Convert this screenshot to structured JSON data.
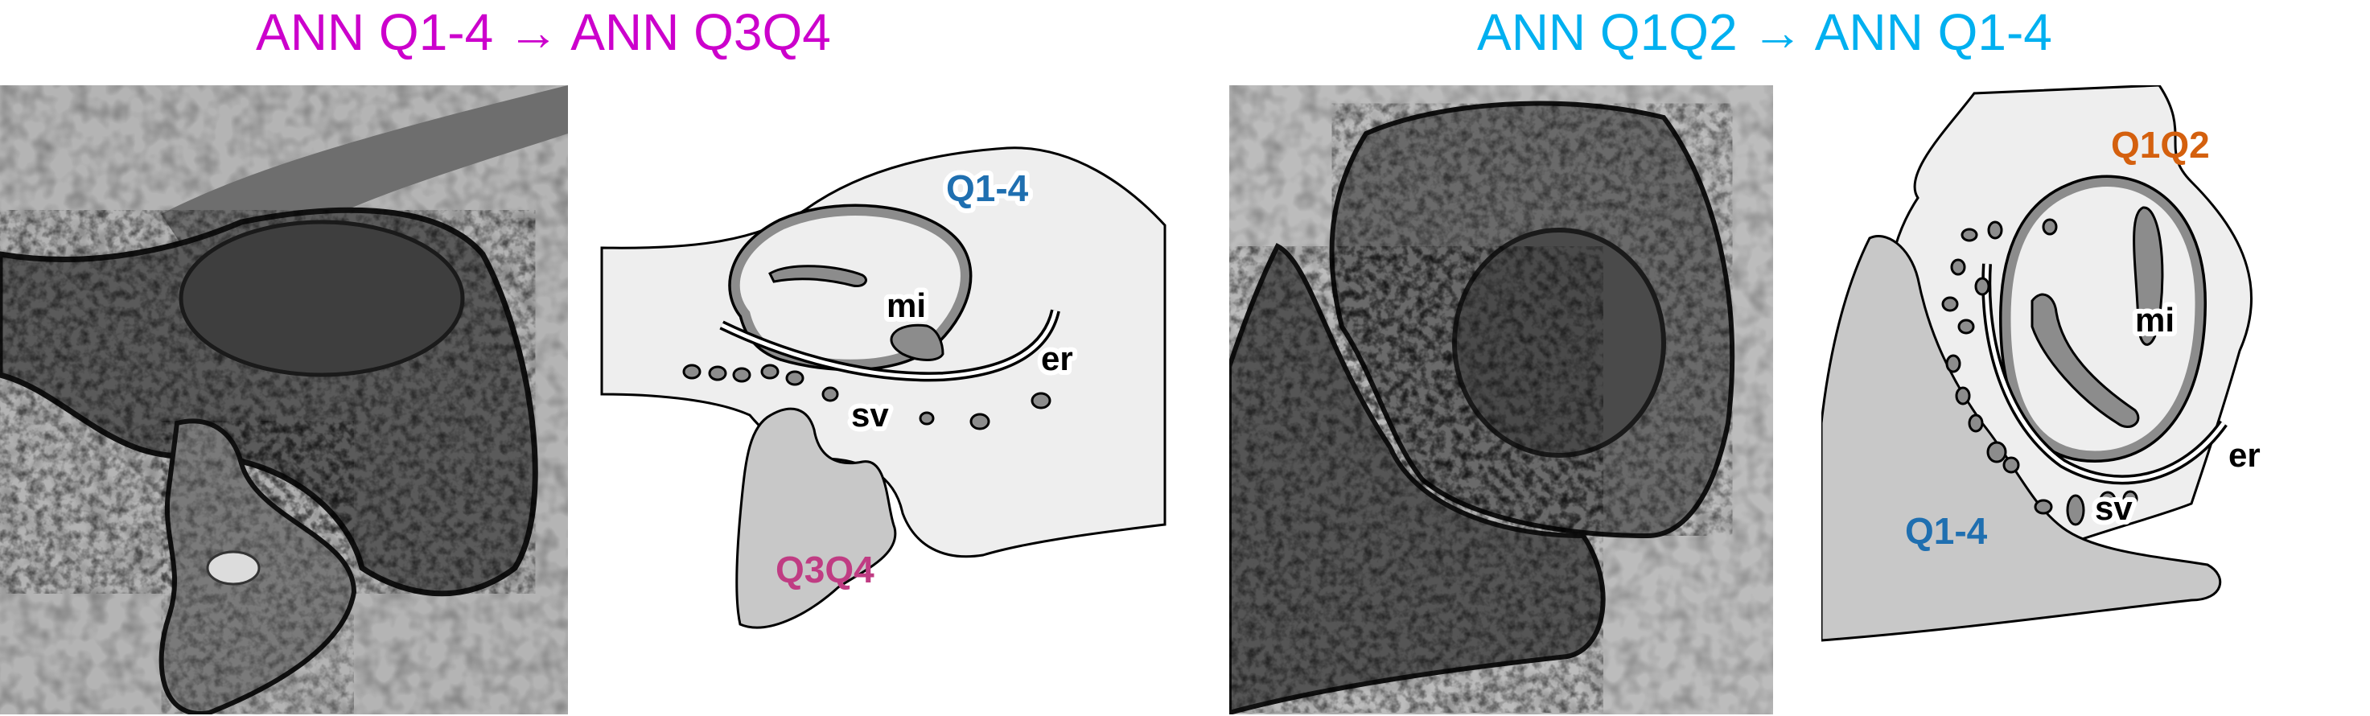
{
  "titles": {
    "left": "ANN Q1-4 → ANN Q3Q4",
    "right": "ANN Q1Q2 → ANN Q1-4"
  },
  "colors": {
    "left_title": "#CC00CC",
    "right_title": "#00B0F0",
    "q14_label": "#1F6FB0",
    "q3q4_label": "#C03C83",
    "q1q2_label": "#D4600E",
    "cell_fill": "#EEEEEE",
    "neighbor_fill": "#C8C8C8",
    "organelle_gray": "#8C8C8C",
    "outline": "#000000"
  },
  "left_schematic": {
    "cell_label": "Q1-4",
    "neighbor_label": "Q3Q4",
    "mito_label": "mi",
    "er_label": "er",
    "sv_label": "sv"
  },
  "right_schematic": {
    "cell_label": "Q1Q2",
    "neighbor_label": "Q1-4",
    "mito_label": "mi",
    "er_label": "er",
    "sv_label": "sv"
  }
}
